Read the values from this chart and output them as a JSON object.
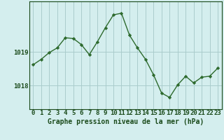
{
  "x": [
    0,
    1,
    2,
    3,
    4,
    5,
    6,
    7,
    8,
    9,
    10,
    11,
    12,
    13,
    14,
    15,
    16,
    17,
    18,
    19,
    20,
    21,
    22,
    23
  ],
  "y": [
    1018.62,
    1018.78,
    1018.98,
    1019.12,
    1019.42,
    1019.4,
    1019.22,
    1018.92,
    1019.3,
    1019.72,
    1020.1,
    1020.15,
    1019.5,
    1019.12,
    1018.78,
    1018.32,
    1017.78,
    1017.65,
    1018.02,
    1018.28,
    1018.08,
    1018.25,
    1018.28,
    1018.52
  ],
  "line_color": "#2d6a2d",
  "marker_color": "#2d6a2d",
  "bg_color": "#d4eeee",
  "grid_color": "#aacccc",
  "axis_label_color": "#1a4a1a",
  "ytick_labels": [
    "1019",
    "1018"
  ],
  "ytick_values": [
    1019.0,
    1018.0
  ],
  "xlabel": "Graphe pression niveau de la mer (hPa)",
  "xlim": [
    -0.5,
    23.5
  ],
  "ylim": [
    1017.3,
    1020.5
  ],
  "xlabel_fontsize": 7.0,
  "tick_fontsize": 6.5
}
